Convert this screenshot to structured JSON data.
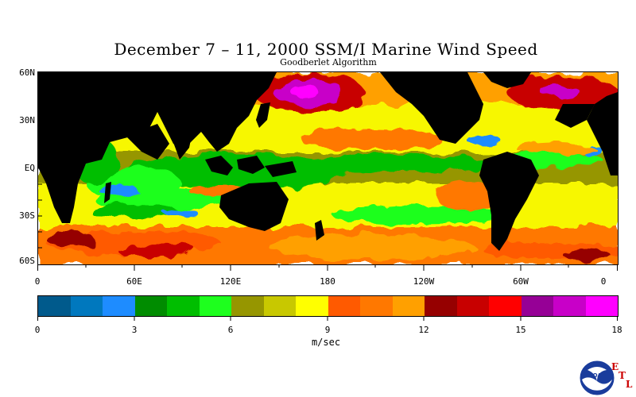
{
  "title": "December 7 – 11, 2000 SSM/I Marine Wind Speed",
  "subtitle": "Goodberlet Algorithm",
  "map": {
    "projection": "cylindrical",
    "lat_range": [
      -60,
      60
    ],
    "lon_range": [
      0,
      360
    ],
    "land_color": "#000000",
    "lat_labels": [
      "60N",
      "30N",
      "EQ",
      "30S",
      "60S"
    ],
    "lon_labels": [
      "0",
      "60E",
      "120E",
      "180",
      "120W",
      "60W",
      "0"
    ]
  },
  "colorbar": {
    "unit": "m/sec",
    "range": [
      0,
      18
    ],
    "tick_labels": [
      "0",
      "3",
      "6",
      "9",
      "12",
      "15",
      "18"
    ],
    "colors": [
      "#005a8c",
      "#0078be",
      "#1e8cff",
      "#008c00",
      "#00be00",
      "#1eff1e",
      "#969600",
      "#c8c800",
      "#ffff00",
      "#ff5a00",
      "#ff7800",
      "#ffa000",
      "#960000",
      "#c80000",
      "#ff0000",
      "#960096",
      "#c800c8",
      "#ff00ff"
    ]
  },
  "logo": {
    "name": "NOAA",
    "label": "NOAA",
    "etl_letters": [
      "E",
      "T",
      "L"
    ]
  }
}
